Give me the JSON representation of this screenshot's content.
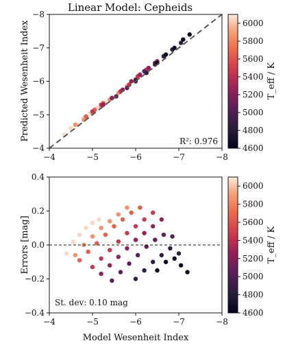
{
  "chart_data": [
    {
      "type": "scatter",
      "title": "Linear Model: Cepheids",
      "xlabel": "",
      "ylabel": "Predicted Wesenheit Index",
      "xlim": [
        -4,
        -8
      ],
      "ylim": [
        -4,
        -8
      ],
      "xticks": [
        -4,
        -5,
        -6,
        -7,
        -8
      ],
      "yticks": [
        -4,
        -5,
        -6,
        -7,
        -8
      ],
      "xtick_labels": [
        "−4",
        "−5",
        "−6",
        "−7",
        "−8"
      ],
      "ytick_labels": [
        "−4",
        "−5",
        "−6",
        "−7",
        "−8"
      ],
      "reference_line": {
        "style": "dashed",
        "color": "#555555",
        "from": [
          -4,
          -4
        ],
        "to": [
          -8,
          -8
        ]
      },
      "annotation": "R²: 0.976",
      "annotation_placement": "bottom-right",
      "colorbar": {
        "label": "T_eff / K",
        "min": 4600,
        "max": 6100,
        "ticks": [
          4600,
          4800,
          5000,
          5200,
          5400,
          5600,
          5800,
          6000
        ],
        "tick_labels": [
          "4600",
          "4800",
          "5000",
          "5200",
          "5400",
          "5600",
          "5800",
          "6000"
        ],
        "colormap": "rocket"
      },
      "grid": false,
      "series": [
        {
          "teff": 6050,
          "points": [
            [
              -4.35,
              -4.4
            ],
            [
              -4.5,
              -4.6
            ],
            [
              -4.65,
              -4.7
            ],
            [
              -4.8,
              -4.9
            ],
            [
              -4.95,
              -5.05
            ],
            [
              -5.1,
              -5.2
            ],
            [
              -5.3,
              -5.35
            ]
          ]
        },
        {
          "teff": 5850,
          "points": [
            [
              -4.6,
              -4.7
            ],
            [
              -4.8,
              -4.85
            ],
            [
              -5.0,
              -5.05
            ],
            [
              -5.2,
              -5.25
            ],
            [
              -5.4,
              -5.45
            ],
            [
              -5.6,
              -5.65
            ],
            [
              -5.8,
              -5.85
            ]
          ]
        },
        {
          "teff": 5650,
          "points": [
            [
              -4.85,
              -4.95
            ],
            [
              -5.05,
              -5.15
            ],
            [
              -5.25,
              -5.35
            ],
            [
              -5.45,
              -5.5
            ],
            [
              -5.65,
              -5.7
            ],
            [
              -5.85,
              -5.9
            ],
            [
              -6.05,
              -6.1
            ]
          ]
        },
        {
          "teff": 5450,
          "points": [
            [
              -5.0,
              -5.1
            ],
            [
              -5.2,
              -5.3
            ],
            [
              -5.45,
              -5.5
            ],
            [
              -5.65,
              -5.7
            ],
            [
              -5.85,
              -5.9
            ],
            [
              -6.05,
              -6.15
            ],
            [
              -6.25,
              -6.35
            ]
          ]
        },
        {
          "teff": 5250,
          "points": [
            [
              -5.25,
              -5.3
            ],
            [
              -5.45,
              -5.5
            ],
            [
              -5.7,
              -5.75
            ],
            [
              -5.9,
              -6.0
            ],
            [
              -6.1,
              -6.2
            ],
            [
              -6.3,
              -6.4
            ],
            [
              -6.5,
              -6.6
            ]
          ]
        },
        {
          "teff": 5050,
          "points": [
            [
              -5.55,
              -5.55
            ],
            [
              -5.8,
              -5.8
            ],
            [
              -6.0,
              -6.05
            ],
            [
              -6.2,
              -6.3
            ],
            [
              -6.45,
              -6.55
            ],
            [
              -6.65,
              -6.75
            ],
            [
              -6.85,
              -6.95
            ]
          ]
        },
        {
          "teff": 4850,
          "points": [
            [
              -6.0,
              -6.0
            ],
            [
              -6.25,
              -6.25
            ],
            [
              -6.45,
              -6.5
            ],
            [
              -6.65,
              -6.75
            ],
            [
              -6.85,
              -6.95
            ],
            [
              -7.05,
              -7.15
            ]
          ]
        },
        {
          "teff": 4650,
          "points": [
            [
              -6.5,
              -6.55
            ],
            [
              -6.7,
              -6.8
            ],
            [
              -6.9,
              -7.0
            ],
            [
              -7.1,
              -7.25
            ],
            [
              -7.25,
              -7.4
            ]
          ]
        }
      ]
    },
    {
      "type": "scatter",
      "title": "",
      "xlabel": "Model Wesenheit Index",
      "ylabel": "Errors [mag]",
      "xlim": [
        -4,
        -8
      ],
      "ylim": [
        -0.4,
        0.4
      ],
      "xticks": [
        -4,
        -5,
        -6,
        -7,
        -8
      ],
      "yticks": [
        -0.4,
        -0.2,
        0.0,
        0.2,
        0.4
      ],
      "xtick_labels": [
        "−4",
        "−5",
        "−6",
        "−7",
        "−8"
      ],
      "ytick_labels": [
        "−0.4",
        "−0.2",
        "0.0",
        "0.2",
        "0.4"
      ],
      "reference_line": {
        "style": "dashed",
        "color": "#111111",
        "y": 0.0
      },
      "annotation": "St. dev: 0.10 mag",
      "annotation_placement": "bottom-left",
      "colorbar": {
        "label": "T_eff / K",
        "min": 4600,
        "max": 6100,
        "ticks": [
          4600,
          4800,
          5000,
          5200,
          5400,
          5600,
          5800,
          6000
        ],
        "tick_labels": [
          "4600",
          "4800",
          "5000",
          "5200",
          "5400",
          "5600",
          "5800",
          "6000"
        ],
        "colormap": "rocket"
      },
      "grid": false,
      "series": [
        {
          "teff": 6050,
          "points": [
            [
              -4.4,
              -0.05
            ],
            [
              -4.55,
              0.02
            ],
            [
              -4.7,
              0.06
            ],
            [
              -4.85,
              0.1
            ],
            [
              -5.0,
              0.13
            ],
            [
              -5.15,
              0.15
            ]
          ]
        },
        {
          "teff": 5850,
          "points": [
            [
              -4.6,
              -0.06
            ],
            [
              -4.8,
              0.0
            ],
            [
              -5.0,
              0.05
            ],
            [
              -5.2,
              0.1
            ],
            [
              -5.4,
              0.14
            ],
            [
              -5.6,
              0.18
            ],
            [
              -5.8,
              0.22
            ]
          ]
        },
        {
          "teff": 5650,
          "points": [
            [
              -4.7,
              -0.09
            ],
            [
              -4.9,
              -0.04
            ],
            [
              -5.1,
              0.01
            ],
            [
              -5.3,
              0.06
            ],
            [
              -5.5,
              0.11
            ],
            [
              -5.7,
              0.15
            ],
            [
              -5.9,
              0.19
            ],
            [
              -6.1,
              0.22
            ]
          ]
        },
        {
          "teff": 5450,
          "points": [
            [
              -5.0,
              -0.13
            ],
            [
              -5.2,
              -0.08
            ],
            [
              -5.4,
              -0.03
            ],
            [
              -5.6,
              0.02
            ],
            [
              -5.8,
              0.07
            ],
            [
              -6.0,
              0.11
            ],
            [
              -6.2,
              0.15
            ],
            [
              -6.4,
              0.19
            ]
          ]
        },
        {
          "teff": 5250,
          "points": [
            [
              -5.2,
              -0.17
            ],
            [
              -5.4,
              -0.12
            ],
            [
              -5.6,
              -0.07
            ],
            [
              -5.8,
              -0.02
            ],
            [
              -6.0,
              0.03
            ],
            [
              -6.2,
              0.07
            ],
            [
              -6.4,
              0.11
            ],
            [
              -6.6,
              0.15
            ]
          ]
        },
        {
          "teff": 5050,
          "points": [
            [
              -5.45,
              -0.21
            ],
            [
              -5.65,
              -0.16
            ],
            [
              -5.85,
              -0.11
            ],
            [
              -6.05,
              -0.06
            ],
            [
              -6.25,
              -0.01
            ],
            [
              -6.45,
              0.03
            ],
            [
              -6.65,
              0.06
            ],
            [
              -6.85,
              0.05
            ]
          ]
        },
        {
          "teff": 4850,
          "points": [
            [
              -6.0,
              -0.2
            ],
            [
              -6.2,
              -0.15
            ],
            [
              -6.4,
              -0.1
            ],
            [
              -6.6,
              -0.06
            ],
            [
              -6.8,
              -0.02
            ],
            [
              -7.0,
              -0.05
            ]
          ]
        },
        {
          "teff": 4650,
          "points": [
            [
              -6.5,
              -0.15
            ],
            [
              -6.7,
              -0.1
            ],
            [
              -6.9,
              -0.08
            ],
            [
              -7.05,
              -0.12
            ],
            [
              -7.2,
              -0.16
            ]
          ]
        }
      ]
    }
  ]
}
